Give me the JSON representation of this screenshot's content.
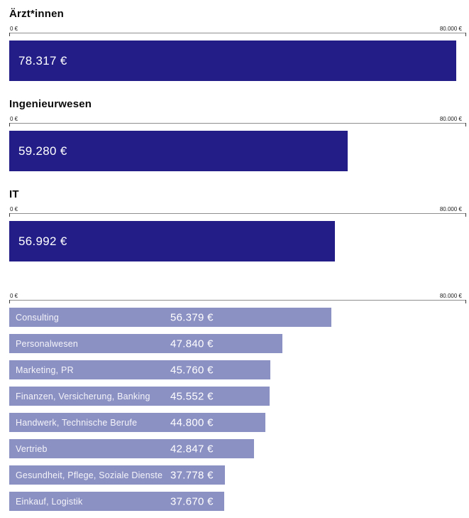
{
  "axis": {
    "min_label": "0 €",
    "max_label": "80.000 €",
    "max_value": 80000
  },
  "colors": {
    "bar_dark": "#231e87",
    "bar_light": "#8c91c4",
    "axis_line": "#8f8f8f"
  },
  "chart_data": [
    {
      "type": "bar",
      "orientation": "horizontal",
      "title": "Ärzt*innen",
      "categories": [
        "Ärzt*innen"
      ],
      "values": [
        78317
      ],
      "value_labels": [
        "78.317 €"
      ],
      "xlim": [
        0,
        80000
      ],
      "axis_tick_labels": [
        "0 €",
        "80.000 €"
      ],
      "grid": false,
      "legend": "none"
    },
    {
      "type": "bar",
      "orientation": "horizontal",
      "title": "Ingenieurwesen",
      "categories": [
        "Ingenieurwesen"
      ],
      "values": [
        59280
      ],
      "value_labels": [
        "59.280 €"
      ],
      "xlim": [
        0,
        80000
      ],
      "axis_tick_labels": [
        "0 €",
        "80.000 €"
      ],
      "grid": false,
      "legend": "none"
    },
    {
      "type": "bar",
      "orientation": "horizontal",
      "title": "IT",
      "categories": [
        "IT"
      ],
      "values": [
        56992
      ],
      "value_labels": [
        "56.992 €"
      ],
      "xlim": [
        0,
        80000
      ],
      "axis_tick_labels": [
        "0 €",
        "80.000 €"
      ],
      "grid": false,
      "legend": "none"
    },
    {
      "type": "bar",
      "orientation": "horizontal",
      "title": "",
      "categories": [
        "Consulting",
        "Personalwesen",
        "Marketing, PR",
        "Finanzen, Versicherung, Banking",
        "Handwerk, Technische Berufe",
        "Vertrieb",
        "Gesundheit, Pflege, Soziale Dienste",
        "Einkauf, Logistik"
      ],
      "values": [
        56379,
        47840,
        45760,
        45552,
        44800,
        42847,
        37778,
        37670
      ],
      "value_labels": [
        "56.379 €",
        "47.840 €",
        "45.760 €",
        "45.552 €",
        "44.800 €",
        "42.847 €",
        "37.778 €",
        "37.670 €"
      ],
      "xlim": [
        0,
        80000
      ],
      "axis_tick_labels": [
        "0 €",
        "80.000 €"
      ],
      "grid": false,
      "legend": "none"
    }
  ]
}
